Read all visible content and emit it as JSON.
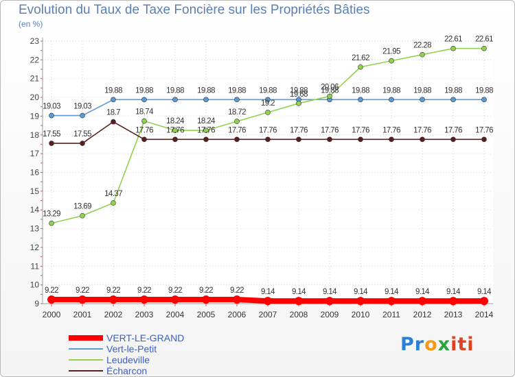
{
  "chart_data": {
    "type": "line",
    "title": "Evolution du Taux de Taxe Foncière sur les Propriétés Bâties",
    "unit_label": "(en %)",
    "x": [
      "2000",
      "2001",
      "2002",
      "2003",
      "2004",
      "2005",
      "2006",
      "2007",
      "2008",
      "2009",
      "2010",
      "2011",
      "2012",
      "2013",
      "2014"
    ],
    "y_ticks": [
      "9",
      "10",
      "11",
      "12",
      "13",
      "14",
      "15",
      "16",
      "17",
      "18",
      "19",
      "20",
      "21",
      "22",
      "23"
    ],
    "ylim": [
      9,
      23
    ],
    "grid": true,
    "legend_position": "bottom-left",
    "series": [
      {
        "name": "VERT-LE-GRAND",
        "color": "#ff0000",
        "values": [
          9.22,
          9.22,
          9.22,
          9.22,
          9.22,
          9.22,
          9.22,
          9.14,
          9.14,
          9.14,
          9.14,
          9.14,
          9.14,
          9.14,
          9.14
        ],
        "labels": [
          "9.22",
          "9.22",
          "9.22",
          "9.22",
          "9.22",
          "9.22",
          "9.22",
          "9.14",
          "9.14",
          "9.14",
          "9.14",
          "9.14",
          "9.14",
          "9.14",
          "9.14"
        ]
      },
      {
        "name": "Vert-le-Petit",
        "color": "#5b9bd5",
        "values": [
          19.03,
          19.03,
          19.88,
          19.88,
          19.88,
          19.88,
          19.88,
          19.88,
          19.88,
          19.88,
          19.88,
          19.88,
          19.88,
          19.88,
          19.88
        ],
        "labels": [
          "19.03",
          "19.03",
          "19.88",
          "19.88",
          "19.88",
          "19.88",
          "19.88",
          "19.88",
          "19.88",
          "19.88",
          "19.88",
          "19.88",
          "19.88",
          "19.88",
          "19.88"
        ]
      },
      {
        "name": "Leudeville",
        "color": "#92d050",
        "values": [
          13.29,
          13.69,
          14.37,
          18.74,
          18.24,
          18.24,
          18.72,
          19.2,
          19.68,
          20.06,
          21.62,
          21.95,
          22.28,
          22.61,
          22.61
        ],
        "labels": [
          "13.29",
          "13.69",
          "14.37",
          "18.74",
          "18.24",
          "18.24",
          "18.72",
          "19.2",
          "19.68",
          "20.06",
          "21.62",
          "21.95",
          "22.28",
          "22.61",
          "22.61"
        ]
      },
      {
        "name": "Écharcon",
        "color": "#5a1e1e",
        "values": [
          17.55,
          17.55,
          18.7,
          17.76,
          17.76,
          17.76,
          17.76,
          17.76,
          17.76,
          17.76,
          17.76,
          17.76,
          17.76,
          17.76,
          17.76
        ],
        "labels": [
          "17.55",
          "17.55",
          "18.7",
          "17.76",
          "17.76",
          "17.76",
          "17.76",
          "17.76",
          "17.76",
          "17.76",
          "17.76",
          "17.76",
          "17.76",
          "17.76",
          "17.76"
        ]
      }
    ]
  },
  "logo": {
    "part1": "Pr",
    "part2": "o",
    "part3": "x",
    "part4": "iti"
  }
}
